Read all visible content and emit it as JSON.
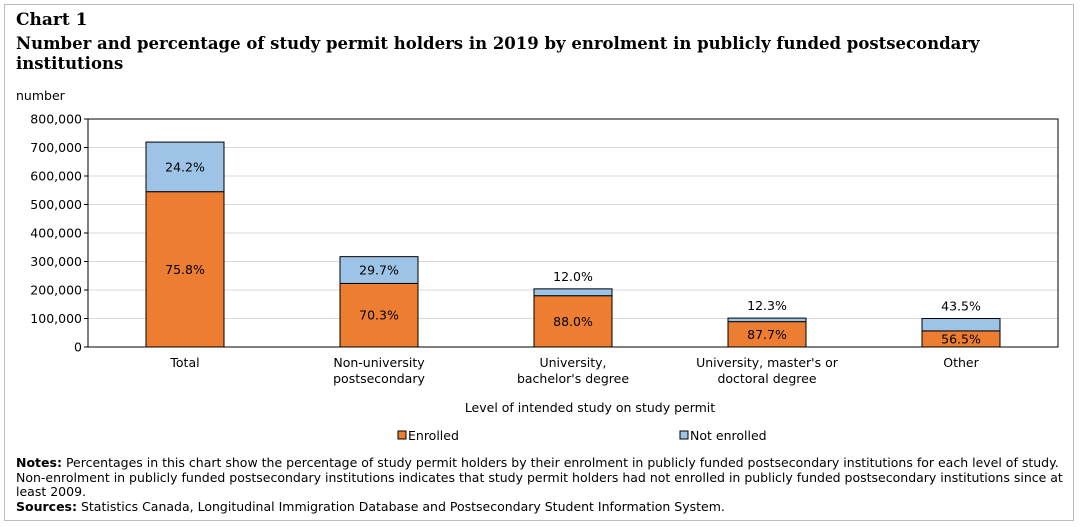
{
  "header": {
    "chart_label": "Chart 1",
    "title": "Number and percentage of study permit holders in 2019 by enrolment in publicly funded postsecondary institutions"
  },
  "footer": {
    "notes_label": "Notes:",
    "notes_text": "Percentages in this chart show the percentage of study permit holders by their enrolment in publicly funded postsecondary institutions for each level of study. Non-enrolment in publicly funded postsecondary institutions indicates that study permit holders had not enrolled in publicly funded postsecondary institutions since at least 2009.",
    "sources_label": "Sources:",
    "sources_text": "Statistics Canada, Longitudinal Immigration Database and Postsecondary Student Information System."
  },
  "chart_data": {
    "type": "bar",
    "stacked": true,
    "title": "Number and percentage of study permit holders in 2019 by enrolment in publicly funded postsecondary institutions",
    "ylabel": "number",
    "xlabel": "Level of intended study on study permit",
    "ylim": [
      0,
      800000
    ],
    "yticks": [
      0,
      100000,
      200000,
      300000,
      400000,
      500000,
      600000,
      700000,
      800000
    ],
    "ytick_labels": [
      "0",
      "100,000",
      "200,000",
      "300,000",
      "400,000",
      "500,000",
      "600,000",
      "700,000",
      "800,000"
    ],
    "categories": [
      [
        "Total"
      ],
      [
        "Non-university",
        "postsecondary"
      ],
      [
        "University,",
        "bachelor's degree"
      ],
      [
        "University, master's or",
        "doctoral degree"
      ],
      [
        "Other"
      ]
    ],
    "series": [
      {
        "name": "Enrolled",
        "color": "#ed7d31",
        "values": [
          545000,
          223000,
          180000,
          89000,
          56500
        ],
        "labels": [
          "75.8%",
          "70.3%",
          "88.0%",
          "87.7%",
          "56.5%"
        ]
      },
      {
        "name": "Not enrolled",
        "color": "#9dc3e6",
        "values": [
          174000,
          94000,
          24000,
          12500,
          43500
        ],
        "labels": [
          "24.2%",
          "29.7%",
          "12.0%",
          "12.3%",
          "43.5%"
        ]
      }
    ],
    "legend": [
      "Enrolled",
      "Not enrolled"
    ],
    "legend_position": "bottom",
    "grid": true
  }
}
